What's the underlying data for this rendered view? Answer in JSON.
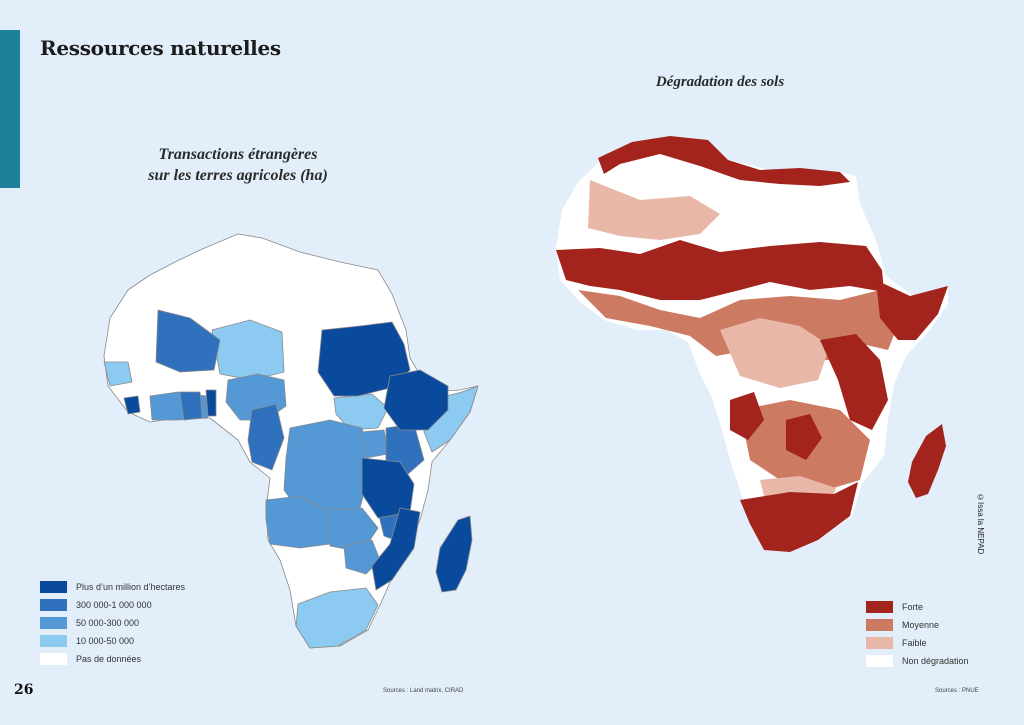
{
  "page": {
    "title": "Ressources naturelles",
    "page_number": "26",
    "credit": "©Issa la NEPAD"
  },
  "map_left": {
    "title_line1": "Transactions étrangères",
    "title_line2": "sur les terres agricoles (ha)",
    "source": "Sources : Land matrix, CIRAD",
    "legend": [
      {
        "label": "Plus d’un million d’hectares",
        "color": "#0a4a9c"
      },
      {
        "label": "300 000-1 000 000",
        "color": "#2f71bd"
      },
      {
        "label": "50 000-300 000",
        "color": "#5498d6"
      },
      {
        "label": "10 000-50 000",
        "color": "#8ccaf1"
      },
      {
        "label": "Pas de données",
        "color": "#ffffff"
      }
    ]
  },
  "map_right": {
    "title": "Dégradation des sols",
    "source": "Sources : PNUE",
    "legend": [
      {
        "label": "Forte",
        "color": "#a3241d"
      },
      {
        "label": "Moyenne",
        "color": "#cd7a62"
      },
      {
        "label": "Faible",
        "color": "#e9b7a8"
      },
      {
        "label": "Non dégradation",
        "color": "#ffffff"
      }
    ]
  },
  "colors": {
    "background": "#e2eef9",
    "accent": "#1f8099",
    "border": "#8a8a8a"
  }
}
